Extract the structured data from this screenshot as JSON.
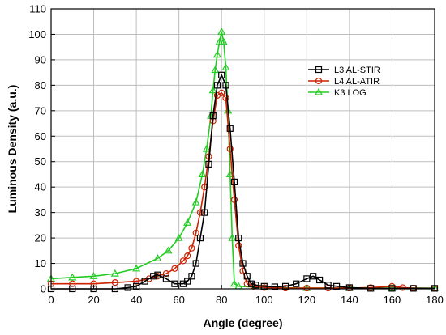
{
  "chart_data": {
    "type": "line",
    "title": "",
    "xlabel": "Angle (degree)",
    "ylabel": "Luminous Density (a.u.)",
    "xlim": [
      0,
      180
    ],
    "ylim": [
      0,
      110
    ],
    "xticks": [
      0,
      20,
      40,
      60,
      80,
      100,
      120,
      140,
      160,
      180
    ],
    "yticks": [
      0,
      10,
      20,
      30,
      40,
      50,
      60,
      70,
      80,
      90,
      100,
      110
    ],
    "grid": true,
    "legend_position": "top-right",
    "series": [
      {
        "name": "L3 AL-STIR",
        "color": "#000000",
        "marker": "square",
        "x": [
          0,
          10,
          20,
          30,
          36,
          40,
          44,
          48,
          50,
          54,
          58,
          62,
          64,
          66,
          68,
          70,
          72,
          74,
          76,
          78,
          80,
          82,
          84,
          86,
          88,
          90,
          92,
          94,
          96,
          100,
          105,
          110,
          115,
          120,
          123,
          126,
          130,
          134,
          140,
          150,
          160,
          170,
          180
        ],
        "y": [
          0,
          0,
          0,
          0,
          0.5,
          1,
          3,
          5,
          5.5,
          4,
          2,
          2,
          3,
          5,
          10,
          20,
          30,
          49,
          68,
          80,
          84,
          80,
          63,
          42,
          20,
          10,
          5,
          2,
          1.5,
          1,
          0.8,
          1,
          2,
          4,
          5,
          3.5,
          1.5,
          1,
          0.5,
          0.2,
          0.2,
          0.2,
          0.2
        ]
      },
      {
        "name": "L4 AL-ATIR",
        "color": "#cc2200",
        "marker": "circle",
        "x": [
          0,
          10,
          20,
          30,
          40,
          46,
          50,
          54,
          58,
          62,
          64,
          66,
          68,
          70,
          72,
          74,
          76,
          78,
          80,
          82,
          84,
          86,
          88,
          90,
          92,
          95,
          100,
          110,
          120,
          130,
          140,
          150,
          160,
          165,
          170,
          180
        ],
        "y": [
          2,
          2,
          2,
          2.5,
          3,
          4,
          5,
          6,
          8,
          11,
          13,
          16,
          22,
          30,
          40,
          52,
          66,
          76,
          77,
          75,
          55,
          35,
          17,
          7,
          2,
          1,
          0.5,
          0.3,
          0.3,
          0.3,
          0.3,
          0.5,
          1,
          0.5,
          0.3,
          0.2
        ]
      },
      {
        "name": "K3 LOG",
        "color": "#22cc22",
        "marker": "triangle",
        "x": [
          0,
          10,
          20,
          30,
          40,
          50,
          55,
          60,
          64,
          68,
          71,
          73,
          75,
          76,
          77,
          78,
          79,
          80,
          81,
          82,
          83,
          84,
          85,
          86,
          88,
          100,
          120,
          140,
          160,
          180
        ],
        "y": [
          4,
          4.5,
          5,
          6,
          8,
          12,
          15,
          20,
          26,
          34,
          45,
          55,
          68,
          78,
          86,
          92,
          97,
          101,
          97,
          87,
          70,
          45,
          20,
          2,
          1,
          0.5,
          0.3,
          0.3,
          0.3,
          0.3
        ]
      }
    ]
  }
}
